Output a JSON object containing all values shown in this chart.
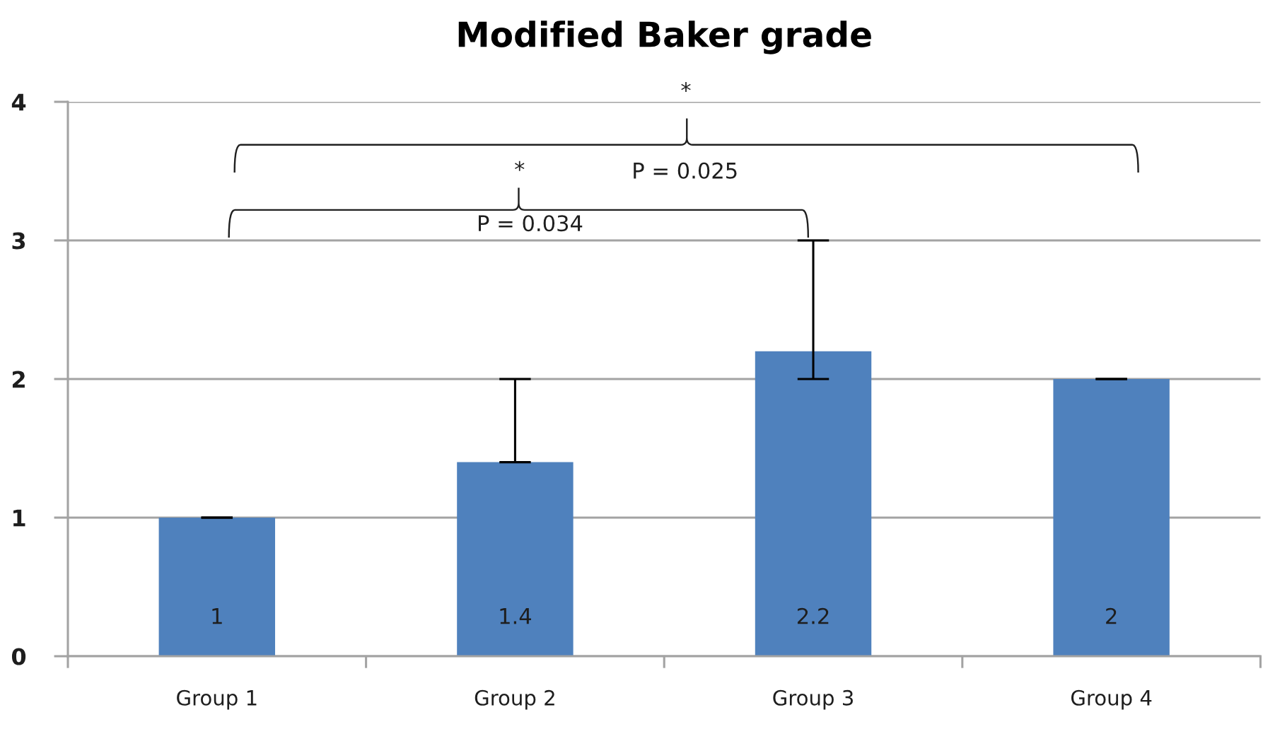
{
  "chart_data": {
    "type": "bar",
    "title": "Modified Baker grade",
    "categories": [
      "Group 1",
      "Group 2",
      "Group 3",
      "Group 4"
    ],
    "values": [
      1,
      1.4,
      2.2,
      2
    ],
    "color": "#4f81bd",
    "errors": [
      [
        1,
        1
      ],
      [
        1.4,
        2
      ],
      [
        2,
        3
      ],
      [
        2,
        2
      ]
    ],
    "ylim": [
      0,
      4
    ],
    "yticks": [
      0,
      1,
      2,
      3,
      4
    ],
    "grid": "y",
    "data_labels": true,
    "annotations": [
      "*",
      "P = 0.025",
      "*",
      "P = 0.034"
    ]
  }
}
